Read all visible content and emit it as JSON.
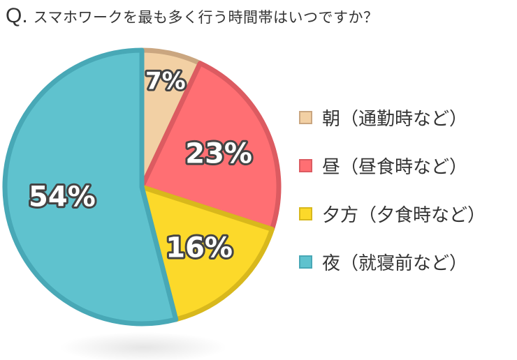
{
  "question": {
    "mark": "Q.",
    "text": "スマホワークを最も多く行う時間帯はいつですか？"
  },
  "chart_data": {
    "type": "pie",
    "title": "",
    "categories": [
      "朝（通勤時など）",
      "昼（昼食時など）",
      "夕方（夕食時など）",
      "夜（就寝前など）"
    ],
    "values": [
      7,
      23,
      16,
      54
    ],
    "data_labels": [
      "7%",
      "23%",
      "16%",
      "54%"
    ],
    "colors": [
      "#f2d0a4",
      "#ff6f73",
      "#fcd92a",
      "#5fc2ce"
    ],
    "edge_colors": [
      "#caa680",
      "#dc5b61",
      "#d8b81c",
      "#48a8b6"
    ],
    "legend_position": "right"
  }
}
